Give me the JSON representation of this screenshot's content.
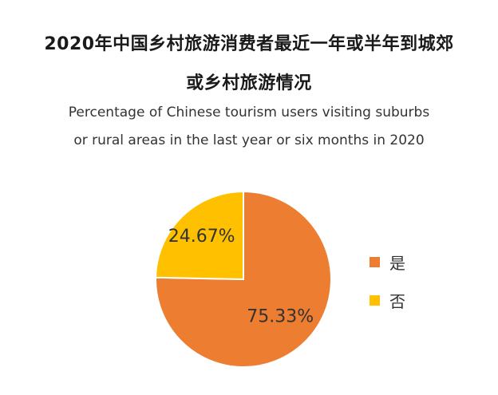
{
  "chart_data": {
    "type": "pie",
    "title": "2020年中国乡村旅游消费者最近一年或半年到城郊或乡村旅游情况",
    "title_lines": [
      "2020年中国乡村旅游消费者最近一年或半年到城郊",
      "或乡村旅游情况"
    ],
    "subtitle_lines": [
      "Percentage of Chinese tourism users visiting suburbs",
      "or rural areas in the last year or six months in 2020"
    ],
    "slices": [
      {
        "label": "是",
        "value": 75.33,
        "display": "75.33%",
        "color": "#ED7D31"
      },
      {
        "label": "否",
        "value": 24.67,
        "display": "24.67%",
        "color": "#FFC000"
      }
    ],
    "legend_position": "right"
  }
}
